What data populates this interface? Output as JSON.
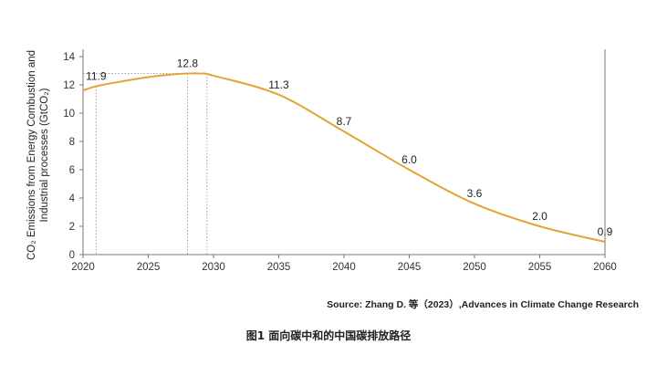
{
  "chart_data": {
    "type": "line",
    "x": [
      2020,
      2021,
      2023,
      2025,
      2027,
      2028,
      2029,
      2030,
      2035,
      2040,
      2045,
      2050,
      2055,
      2060
    ],
    "series": [
      {
        "values": [
          11.6,
          11.9,
          12.25,
          12.55,
          12.75,
          12.8,
          12.8,
          12.65,
          11.3,
          8.7,
          6.0,
          3.6,
          2.0,
          0.9
        ],
        "color": "#E3A435"
      }
    ],
    "data_labels": [
      {
        "x": 2021,
        "y": 11.9,
        "text": "11.9"
      },
      {
        "x": 2028,
        "y": 12.8,
        "text": "12.8"
      },
      {
        "x": 2035,
        "y": 11.3,
        "text": "11.3"
      },
      {
        "x": 2040,
        "y": 8.7,
        "text": "8.7"
      },
      {
        "x": 2045,
        "y": 6.0,
        "text": "6.0"
      },
      {
        "x": 2050,
        "y": 3.6,
        "text": "3.6"
      },
      {
        "x": 2055,
        "y": 2.0,
        "text": "2.0"
      },
      {
        "x": 2060,
        "y": 0.9,
        "text": "0.9"
      }
    ],
    "reference_lines": {
      "vertical_x": [
        2021,
        2028,
        2029.5
      ],
      "horizontal_y": 12.8
    },
    "xlim": [
      2020,
      2060
    ],
    "ylim": [
      0,
      14
    ],
    "x_ticks": [
      2020,
      2025,
      2030,
      2035,
      2040,
      2045,
      2050,
      2055,
      2060
    ],
    "y_ticks": [
      0,
      2,
      4,
      6,
      8,
      10,
      12,
      14
    ],
    "ylabel_line1": "CO₂ Emissions from Energy Combustion and",
    "ylabel_line2": "Industrial processes (GtCO₂)",
    "xlabel": "",
    "grid": false
  },
  "source": "Source: Zhang D. 等（2023）,Advances in Climate Change Research",
  "caption": "图1  面向碳中和的中国碳排放路径"
}
